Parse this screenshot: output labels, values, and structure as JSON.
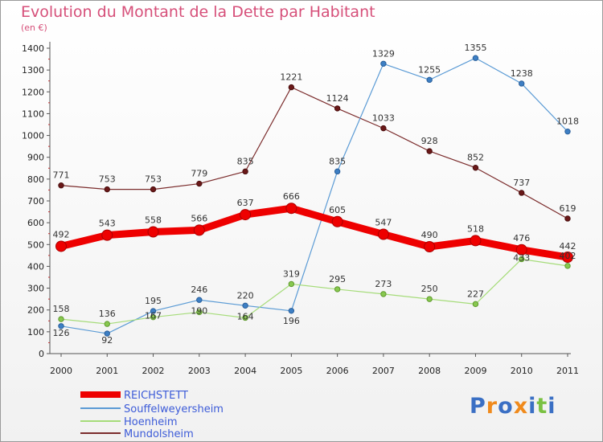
{
  "chart_data": {
    "type": "line",
    "title": "Evolution du Montant de la Dette par Habitant",
    "subtitle": "(en €)",
    "x": [
      "2000",
      "2001",
      "2002",
      "2003",
      "2004",
      "2005",
      "2006",
      "2007",
      "2008",
      "2009",
      "2010",
      "2011"
    ],
    "ylim": [
      0,
      1400
    ],
    "yticks": [
      0,
      100,
      200,
      300,
      400,
      500,
      600,
      700,
      800,
      900,
      1000,
      1100,
      1200,
      1300,
      1400
    ],
    "grid": false,
    "legend_position": "bottom-left",
    "series": [
      {
        "name": "REICHSTETT",
        "color": "#ee0000",
        "values": [
          492,
          543,
          558,
          566,
          637,
          666,
          605,
          547,
          490,
          518,
          476,
          442
        ]
      },
      {
        "name": "Souffelweyersheim",
        "color": "#5b9bd5",
        "values": [
          126,
          92,
          195,
          246,
          220,
          196,
          835,
          1329,
          1255,
          1355,
          1238,
          1018
        ]
      },
      {
        "name": "Hoenheim",
        "color": "#a6dc7a",
        "values": [
          158,
          136,
          167,
          190,
          164,
          319,
          295,
          273,
          250,
          227,
          433,
          402
        ]
      },
      {
        "name": "Mundolsheim",
        "color": "#7b2c2c",
        "values": [
          771,
          753,
          753,
          779,
          835,
          1221,
          1124,
          1033,
          928,
          852,
          737,
          619
        ]
      }
    ]
  },
  "logo": {
    "text": "Proxiti",
    "letters": [
      "P",
      "r",
      "o",
      "x",
      "i",
      "t",
      "i"
    ],
    "colors": [
      "#3a6fc4",
      "#f08a1c",
      "#3a6fc4",
      "#f08a1c",
      "#3a6fc4",
      "#7ac142",
      "#3a6fc4"
    ]
  }
}
